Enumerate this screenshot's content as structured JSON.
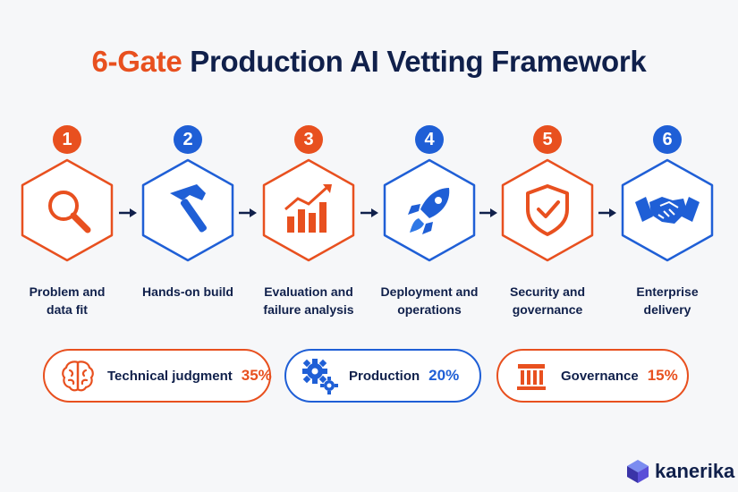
{
  "title": {
    "accent": "6-Gate",
    "rest": "Production AI Vetting Framework"
  },
  "colors": {
    "orange": "#e8501f",
    "blue": "#1f5fd6",
    "navy": "#10204b"
  },
  "gates": [
    {
      "number": "1",
      "label_line1": "Problem and",
      "label_line2": "data fit",
      "icon": "magnifier-icon",
      "color": "orange"
    },
    {
      "number": "2",
      "label_line1": "Hands-on build",
      "label_line2": "",
      "icon": "hammer-icon",
      "color": "blue"
    },
    {
      "number": "3",
      "label_line1": "Evaluation and",
      "label_line2": "failure analysis",
      "icon": "growth-chart-icon",
      "color": "orange"
    },
    {
      "number": "4",
      "label_line1": "Deployment and",
      "label_line2": "operations",
      "icon": "rocket-icon",
      "color": "blue"
    },
    {
      "number": "5",
      "label_line1": "Security and",
      "label_line2": "governance",
      "icon": "shield-check-icon",
      "color": "orange"
    },
    {
      "number": "6",
      "label_line1": "Enterprise",
      "label_line2": "delivery",
      "icon": "handshake-icon",
      "color": "blue"
    }
  ],
  "weights": [
    {
      "label": "Technical judgment",
      "value": "35%",
      "icon": "brain-icon",
      "color": "orange"
    },
    {
      "label": "Production",
      "value": "20%",
      "icon": "gears-icon",
      "color": "blue"
    },
    {
      "label": "Governance",
      "value": "15%",
      "icon": "pillar-building-icon",
      "color": "orange"
    }
  ],
  "brand": {
    "name": "kanerika",
    "icon": "cube-logo-icon"
  }
}
